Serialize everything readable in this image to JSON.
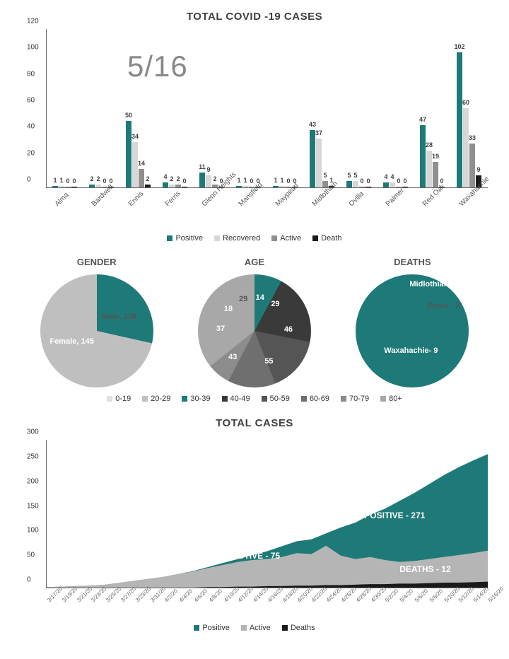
{
  "titles": {
    "main": "TOTAL COVID -19 CASES",
    "date": "5/16",
    "gender": "GENDER",
    "age": "AGE",
    "deaths": "DEATHS",
    "total_cases": "TOTAL CASES"
  },
  "bar_chart": {
    "type": "bar",
    "ylim": [
      0,
      120
    ],
    "ytick_step": 20,
    "series": [
      "Positive",
      "Recovered",
      "Active",
      "Death"
    ],
    "series_colors": [
      "#1e7a78",
      "#d7d7d7",
      "#8f8f8f",
      "#1a1a1a"
    ],
    "cities": [
      {
        "name": "Alma",
        "v": [
          1,
          1,
          0,
          0
        ]
      },
      {
        "name": "Bardwell",
        "v": [
          2,
          2,
          0,
          0
        ]
      },
      {
        "name": "Ennis",
        "v": [
          50,
          34,
          14,
          2
        ]
      },
      {
        "name": "Ferris",
        "v": [
          4,
          2,
          2,
          0
        ]
      },
      {
        "name": "Glenn Heights",
        "v": [
          11,
          9,
          2,
          0
        ]
      },
      {
        "name": "Mansfield",
        "v": [
          1,
          1,
          0,
          0
        ]
      },
      {
        "name": "Maypearl",
        "v": [
          1,
          1,
          0,
          0
        ]
      },
      {
        "name": "Midlothian",
        "v": [
          43,
          37,
          5,
          1
        ]
      },
      {
        "name": "Ovilla",
        "v": [
          5,
          5,
          0,
          0
        ]
      },
      {
        "name": "Palmer",
        "v": [
          4,
          4,
          0,
          0
        ]
      },
      {
        "name": "Red Oak",
        "v": [
          47,
          28,
          19,
          0
        ]
      },
      {
        "name": "Waxahachie",
        "v": [
          102,
          60,
          33,
          9
        ]
      }
    ]
  },
  "gender_pie": {
    "type": "pie",
    "slices": [
      {
        "label": "Female, 145",
        "value": 145,
        "color": "#1e7a78"
      },
      {
        "label": "Male, 126",
        "value": 126,
        "color": "#bfbfbf"
      }
    ]
  },
  "age_pie": {
    "type": "pie",
    "legend": [
      "0-19",
      "20-29",
      "30-39",
      "40-49",
      "50-59",
      "60-69",
      "70-79",
      "80+"
    ],
    "slices": [
      {
        "label": "14",
        "value": 14,
        "color": "#e0e0e0"
      },
      {
        "label": "29",
        "value": 29,
        "color": "#c0c0c0"
      },
      {
        "label": "46",
        "value": 46,
        "color": "#1e7a78"
      },
      {
        "label": "55",
        "value": 55,
        "color": "#3a3a3a"
      },
      {
        "label": "43",
        "value": 43,
        "color": "#555555"
      },
      {
        "label": "37",
        "value": 37,
        "color": "#6f6f6f"
      },
      {
        "label": "18",
        "value": 18,
        "color": "#8c8c8c"
      },
      {
        "label": "29",
        "value": 29,
        "color": "#a8a8a8"
      }
    ]
  },
  "deaths_pie": {
    "type": "pie",
    "slices": [
      {
        "label": "Midlothian- 1",
        "value": 1,
        "color": "#bfbfbf"
      },
      {
        "label": "Ennis - 2",
        "value": 2,
        "color": "#d7d7d7"
      },
      {
        "label": "Waxahachie- 9",
        "value": 9,
        "color": "#1e7a78"
      }
    ]
  },
  "area_chart": {
    "type": "area",
    "ylim": [
      0,
      300
    ],
    "ytick_step": 50,
    "series": [
      "Positive",
      "Active",
      "Deaths"
    ],
    "series_colors": [
      "#1e7a78",
      "#b5b5b5",
      "#1a1a1a"
    ],
    "labels": {
      "positive": "POSITIVE - 271",
      "active": "ACTIVE - 75",
      "deaths": "DEATHS - 12"
    },
    "dates": [
      "3/17/20",
      "3/19/20",
      "3/21/20",
      "3/23/20",
      "3/25/20",
      "3/27/20",
      "3/29/20",
      "3/31/20",
      "4/2/20",
      "4/4/20",
      "4/6/20",
      "4/8/20",
      "4/10/20",
      "4/12/20",
      "4/14/20",
      "4/16/20",
      "4/18/20",
      "4/20/20",
      "4/22/20",
      "4/24/20",
      "4/26/20",
      "4/28/20",
      "4/30/20",
      "5/2/20",
      "5/4/20",
      "5/6/20",
      "5/8/20",
      "5/10/20",
      "5/12/20",
      "5/14/20",
      "5/16/20"
    ],
    "positive": [
      1,
      2,
      3,
      4,
      6,
      10,
      14,
      18,
      22,
      28,
      34,
      42,
      50,
      58,
      66,
      74,
      84,
      94,
      98,
      110,
      122,
      132,
      148,
      160,
      176,
      192,
      210,
      228,
      244,
      258,
      271
    ],
    "active": [
      1,
      2,
      3,
      4,
      6,
      10,
      14,
      18,
      22,
      28,
      33,
      40,
      46,
      52,
      56,
      58,
      62,
      70,
      68,
      85,
      65,
      58,
      62,
      56,
      52,
      54,
      58,
      62,
      66,
      70,
      75
    ],
    "deaths": [
      0,
      0,
      0,
      0,
      0,
      0,
      0,
      0,
      0,
      0,
      0,
      1,
      1,
      2,
      2,
      3,
      3,
      4,
      4,
      5,
      5,
      6,
      7,
      7,
      8,
      8,
      9,
      10,
      10,
      11,
      12
    ]
  }
}
